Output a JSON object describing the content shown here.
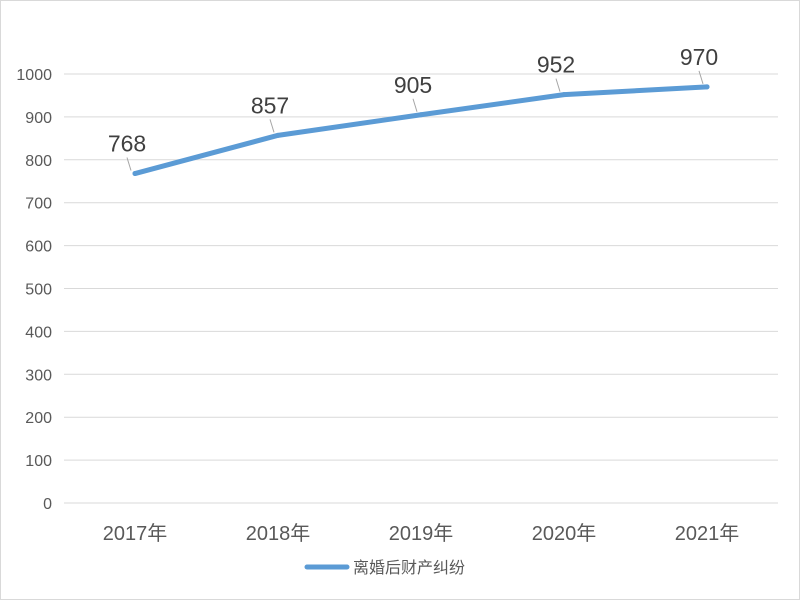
{
  "chart_data": {
    "type": "line",
    "title": "",
    "xlabel": "",
    "ylabel": "",
    "categories": [
      "2017年",
      "2018年",
      "2019年",
      "2020年",
      "2021年"
    ],
    "series": [
      {
        "name": "离婚后财产纠纷",
        "values": [
          768,
          857,
          905,
          952,
          970
        ],
        "color": "#5b9bd5"
      }
    ],
    "ylim": [
      0,
      1000
    ],
    "yticks": [
      0,
      100,
      200,
      300,
      400,
      500,
      600,
      700,
      800,
      900,
      1000
    ],
    "grid": true,
    "legend": "bottom",
    "data_labels": true
  }
}
